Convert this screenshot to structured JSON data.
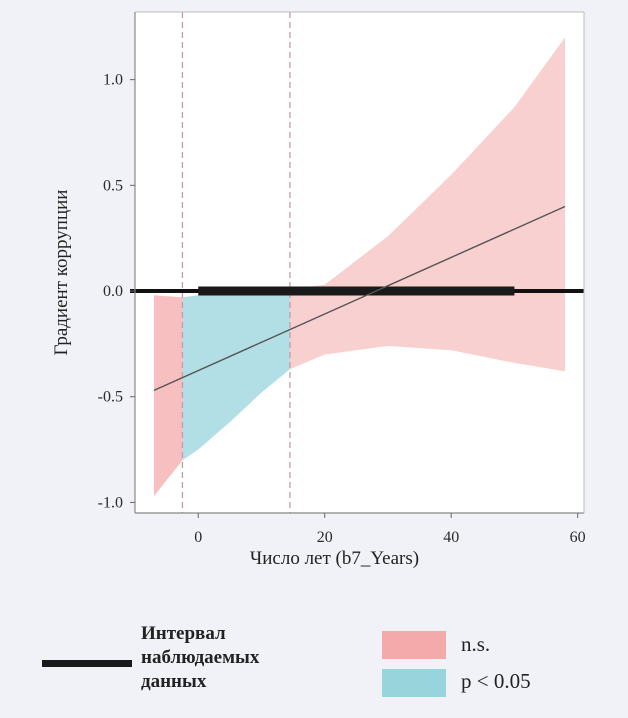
{
  "chart_data": {
    "type": "line",
    "xlabel": "Число лет (b7_Years)",
    "ylabel": "Градиент коррупции",
    "xlim": [
      -10,
      61
    ],
    "ylim": [
      -1.05,
      1.32
    ],
    "x_ticks": [
      0,
      20,
      40,
      60
    ],
    "y_ticks": [
      -1.0,
      -0.5,
      0.0,
      0.5,
      1.0
    ],
    "x_tick_labels": [
      "0",
      "20",
      "40",
      "60"
    ],
    "y_tick_labels": [
      "-1.0",
      "-0.5",
      "0.0",
      "0.5",
      "1.0"
    ],
    "grid": false,
    "marginal_effect_line": {
      "x": [
        -7,
        58
      ],
      "y": [
        -0.47,
        0.4
      ]
    },
    "confidence_band": {
      "x": [
        -7,
        -2.5,
        0,
        5,
        10,
        14.5,
        20,
        30,
        40,
        50,
        58
      ],
      "upper": [
        -0.02,
        -0.03,
        -0.02,
        0.0,
        0.0,
        0.01,
        0.03,
        0.26,
        0.55,
        0.87,
        1.2
      ],
      "lower": [
        -0.97,
        -0.8,
        -0.75,
        -0.62,
        -0.48,
        -0.37,
        -0.3,
        -0.26,
        -0.28,
        -0.34,
        -0.38
      ]
    },
    "significance_bounds_x": [
      -2.5,
      14.5
    ],
    "observed_data_interval_x": [
      0,
      50
    ],
    "zero_reference_line_y": 0.0,
    "colors": {
      "not_significant": "#f4aaaa",
      "significant": "#98d4dc",
      "line": "#555555",
      "observed_interval": "#1a1a1a",
      "boundary_dash": "#c59aa8"
    }
  },
  "legend": {
    "line_label": "Интервал наблюдаемых данных",
    "ns_label": "n.s.",
    "sig_label": "p < 0.05"
  }
}
